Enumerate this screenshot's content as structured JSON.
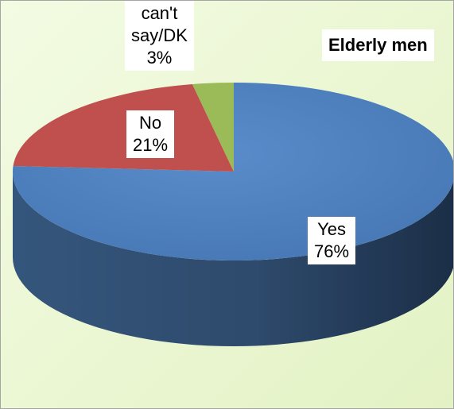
{
  "chart_data": {
    "type": "pie",
    "title": "Elderly men",
    "categories": [
      "Yes",
      "No",
      "can't say/DK"
    ],
    "values": [
      76,
      21,
      3
    ],
    "value_labels": [
      "76%",
      "21%",
      "3%"
    ],
    "unit": "%",
    "three_d": true,
    "legend": "none",
    "colors": {
      "Yes": "#4f81bd",
      "No": "#c0504d",
      "can't say/DK": "#9bbb59"
    },
    "background": "#eaf5d2"
  },
  "labels": {
    "yes": {
      "category": "Yes",
      "value": "76%"
    },
    "no": {
      "category": "No",
      "value": "21%"
    },
    "dk": {
      "category_line1": "can't",
      "category_line2": "say/DK",
      "value": "3%"
    }
  }
}
